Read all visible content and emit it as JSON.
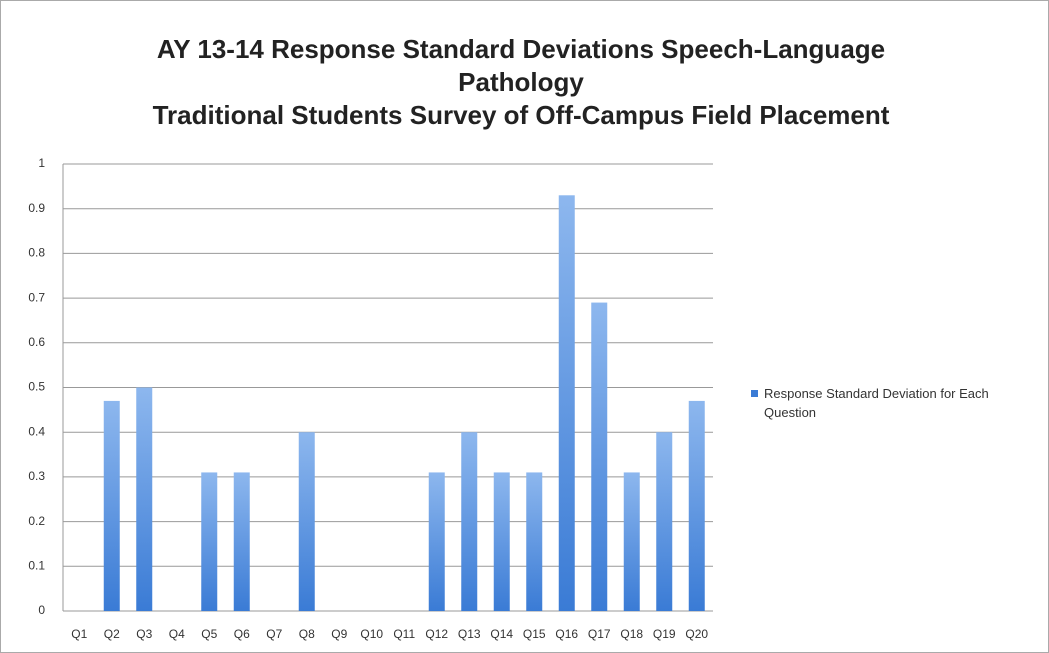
{
  "chart_data": {
    "type": "bar",
    "title": "AY 13-14 Response Standard Deviations Speech-Language Pathology",
    "subtitle": "Traditional Students Survey of Off-Campus Field Placement",
    "categories": [
      "Q1",
      "Q2",
      "Q3",
      "Q4",
      "Q5",
      "Q6",
      "Q7",
      "Q8",
      "Q9",
      "Q10",
      "Q11",
      "Q12",
      "Q13",
      "Q14",
      "Q15",
      "Q16",
      "Q17",
      "Q18",
      "Q19",
      "Q20"
    ],
    "series": [
      {
        "name": "Response Standard Deviation for Each Question",
        "color": "#3a7bd5",
        "values": [
          0,
          0.47,
          0.5,
          0,
          0.31,
          0.31,
          0,
          0.4,
          0,
          0,
          0,
          0.31,
          0.4,
          0.31,
          0.31,
          0.93,
          0.69,
          0.31,
          0.4,
          0.47
        ]
      }
    ],
    "ylim": [
      0,
      1
    ],
    "yticks": [
      0,
      0.1,
      0.2,
      0.3,
      0.4,
      0.5,
      0.6,
      0.7,
      0.8,
      0.9,
      1
    ],
    "grid": true,
    "legend": "right"
  }
}
